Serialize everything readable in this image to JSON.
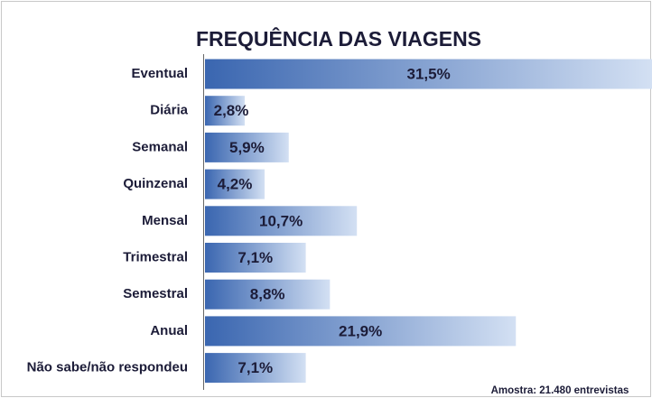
{
  "chart_data": {
    "type": "bar",
    "orientation": "horizontal",
    "title": "FREQUÊNCIA DAS VIAGENS",
    "categories": [
      "Eventual",
      "Diária",
      "Semanal",
      "Quinzenal",
      "Mensal",
      "Trimestral",
      "Semestral",
      "Anual",
      "Não sabe/não respondeu"
    ],
    "values": [
      31.5,
      2.8,
      5.9,
      4.2,
      10.7,
      7.1,
      8.8,
      21.9,
      7.1
    ],
    "value_labels": [
      "31,5%",
      "2,8%",
      "5,9%",
      "4,2%",
      "10,7%",
      "7,1%",
      "8,8%",
      "21,9%",
      "7,1%"
    ],
    "color": "#3a66b0",
    "note": "Amostra: 21.480 entrevistas"
  }
}
